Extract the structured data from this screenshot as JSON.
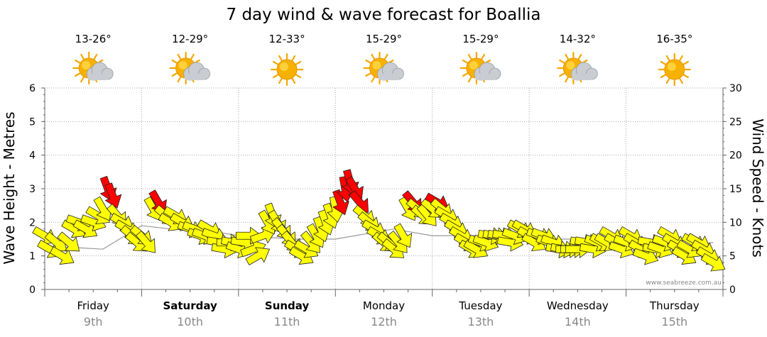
{
  "title": "7 day wind & wave forecast for Boallia",
  "credit": "www.seabreeze.com.au",
  "chart_data": {
    "type": "line",
    "title": "7 day wind & wave forecast for Boallia",
    "ylabel": "Wave Height - Metres",
    "y2label": "Wind Speed - Knots",
    "ylim": [
      0,
      6
    ],
    "y2lim": [
      0,
      30
    ],
    "yticks": [
      "0",
      "1",
      "2",
      "3",
      "4",
      "5",
      "6"
    ],
    "y2ticks": [
      "0",
      "5",
      "10",
      "15",
      "20",
      "25",
      "30"
    ],
    "days": [
      {
        "day": "Friday",
        "date": "9th",
        "temp": "13-26°",
        "weather": "partly-cloudy",
        "bold": false
      },
      {
        "day": "Saturday",
        "date": "10th",
        "temp": "12-29°",
        "weather": "partly-cloudy",
        "bold": true
      },
      {
        "day": "Sunday",
        "date": "11th",
        "temp": "12-33°",
        "weather": "sunny",
        "bold": true
      },
      {
        "day": "Monday",
        "date": "12th",
        "temp": "15-29°",
        "weather": "partly-cloudy",
        "bold": false
      },
      {
        "day": "Tuesday",
        "date": "13th",
        "temp": "15-29°",
        "weather": "partly-cloudy",
        "bold": false
      },
      {
        "day": "Wednesday",
        "date": "14th",
        "temp": "14-32°",
        "weather": "partly-cloudy",
        "bold": false
      },
      {
        "day": "Thursday",
        "date": "15th",
        "temp": "16-35°",
        "weather": "sunny",
        "bold": false
      }
    ],
    "colors": {
      "strong_wind": "#ff0000",
      "light_wind": "#ffff00",
      "arrow_outline": "#222222"
    },
    "series": [
      {
        "name": "Wave height (m)",
        "t": [
          0.0,
          0.6,
          1.0,
          1.3,
          1.6,
          2.0,
          2.6,
          3.0,
          3.6,
          4.0,
          4.6,
          5.0,
          5.6,
          6.0,
          6.6,
          6.9
        ],
        "values": [
          1.3,
          1.2,
          1.9,
          1.8,
          1.8,
          1.6,
          1.5,
          1.5,
          1.8,
          1.6,
          1.6,
          1.5,
          1.5,
          1.3,
          1.3,
          1.4
        ]
      },
      {
        "name": "Wind speed (knots)",
        "t": [
          0.0,
          0.05,
          0.12,
          0.18,
          0.25,
          0.3,
          0.35,
          0.42,
          0.5,
          0.55,
          0.6,
          0.65,
          0.7,
          0.75,
          0.8,
          0.85,
          0.9,
          0.95,
          1.0,
          1.05,
          1.12,
          1.17,
          1.25,
          1.3,
          1.35,
          1.42,
          1.5,
          1.55,
          1.6,
          1.65,
          1.7,
          1.75,
          1.8,
          1.85,
          1.9,
          1.95,
          2.0,
          2.05,
          2.1,
          2.15,
          2.2,
          2.25,
          2.3,
          2.35,
          2.4,
          2.45,
          2.5,
          2.55,
          2.6,
          2.65,
          2.7,
          2.75,
          2.8,
          2.85,
          2.9,
          2.95,
          3.0,
          3.05,
          3.1,
          3.15,
          3.2,
          3.25,
          3.3,
          3.35,
          3.4,
          3.45,
          3.5,
          3.55,
          3.6,
          3.65,
          3.7,
          3.75,
          3.8,
          3.85,
          3.9,
          3.95,
          4.0,
          4.05,
          4.1,
          4.15,
          4.2,
          4.25,
          4.3,
          4.35,
          4.4,
          4.45,
          4.5,
          4.55,
          4.6,
          4.65,
          4.7,
          4.75,
          4.8,
          4.85,
          4.9,
          4.95,
          5.0,
          5.05,
          5.1,
          5.15,
          5.2,
          5.25,
          5.3,
          5.35,
          5.4,
          5.45,
          5.5,
          5.55,
          5.6,
          5.65,
          5.7,
          5.75,
          5.8,
          5.85,
          5.9,
          5.95,
          6.0,
          6.05,
          6.1,
          6.15,
          6.2,
          6.25,
          6.3,
          6.35,
          6.4,
          6.45,
          6.5,
          6.55,
          6.6,
          6.65,
          6.7,
          6.75,
          6.8,
          6.85,
          6.9
        ],
        "values": [
          8,
          6,
          7,
          5,
          7,
          9,
          10,
          9,
          10,
          11,
          12,
          15,
          14,
          11,
          10,
          9,
          8,
          7,
          8,
          7,
          12,
          13,
          11,
          10,
          11,
          10,
          9,
          9,
          8,
          8,
          9,
          8,
          7,
          6,
          7,
          7,
          6,
          7,
          8,
          6,
          5,
          8,
          10,
          11,
          10,
          9,
          8,
          7,
          6,
          5,
          6,
          7,
          8,
          9,
          10,
          11,
          12,
          13,
          15,
          16,
          15,
          13,
          11,
          10,
          9,
          8,
          7,
          7,
          6,
          7,
          8,
          12,
          13,
          12,
          11,
          11,
          12,
          13,
          12,
          11,
          10,
          9,
          8,
          7,
          6,
          6,
          7,
          7,
          8,
          8,
          8,
          8,
          7,
          8,
          9,
          9,
          8,
          7,
          8,
          8,
          7,
          7,
          6,
          6,
          6,
          6,
          6,
          7,
          7,
          6,
          7,
          7,
          7,
          8,
          7,
          6,
          7,
          8,
          7,
          6,
          5,
          7,
          6,
          6,
          7,
          8,
          7,
          6,
          5,
          6,
          7,
          7,
          6,
          5,
          4
        ],
        "direction_deg": [
          300,
          300,
          310,
          300,
          310,
          300,
          290,
          300,
          290,
          300,
          330,
          340,
          340,
          320,
          300,
          300,
          310,
          310,
          310,
          320,
          330,
          330,
          310,
          300,
          300,
          300,
          290,
          290,
          290,
          290,
          300,
          290,
          280,
          280,
          270,
          280,
          290,
          280,
          270,
          250,
          240,
          250,
          330,
          340,
          330,
          320,
          320,
          320,
          300,
          300,
          300,
          320,
          330,
          340,
          340,
          340,
          350,
          340,
          350,
          345,
          330,
          320,
          310,
          310,
          300,
          300,
          310,
          310,
          310,
          320,
          330,
          330,
          320,
          310,
          310,
          320,
          310,
          300,
          310,
          300,
          300,
          300,
          300,
          300,
          300,
          300,
          290,
          290,
          280,
          280,
          280,
          280,
          280,
          290,
          300,
          300,
          300,
          300,
          290,
          290,
          290,
          290,
          280,
          280,
          270,
          270,
          270,
          280,
          280,
          280,
          290,
          300,
          300,
          300,
          300,
          290,
          290,
          300,
          300,
          300,
          290,
          280,
          280,
          290,
          290,
          300,
          300,
          300,
          300,
          300,
          300,
          300,
          300,
          300,
          300
        ]
      }
    ]
  }
}
